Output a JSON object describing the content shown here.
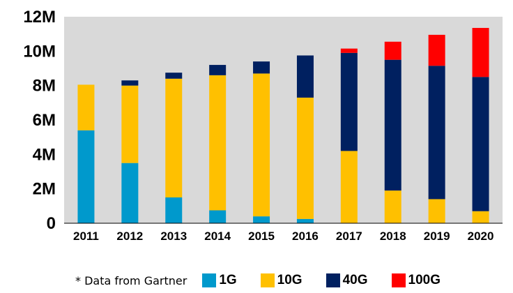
{
  "chart_data": {
    "type": "bar",
    "stacked": true,
    "categories": [
      "2011",
      "2012",
      "2013",
      "2014",
      "2015",
      "2016",
      "2017",
      "2018",
      "2019",
      "2020"
    ],
    "series": [
      {
        "name": "1G",
        "color": "#0099cc",
        "values": [
          5.4,
          3.5,
          1.5,
          0.75,
          0.4,
          0.25,
          0,
          0,
          0,
          0
        ]
      },
      {
        "name": "10G",
        "color": "#ffc000",
        "values": [
          2.65,
          4.5,
          6.9,
          7.85,
          8.3,
          7.05,
          4.2,
          1.9,
          1.4,
          0.7
        ]
      },
      {
        "name": "40G",
        "color": "#002060",
        "values": [
          0,
          0.3,
          0.35,
          0.6,
          0.7,
          2.45,
          5.7,
          7.6,
          7.75,
          7.8
        ]
      },
      {
        "name": "100G",
        "color": "#ff0000",
        "values": [
          0,
          0,
          0,
          0,
          0,
          0,
          0.25,
          1.05,
          1.8,
          2.85
        ]
      }
    ],
    "yticks": [
      "0",
      "2M",
      "4M",
      "6M",
      "8M",
      "10M",
      "12M"
    ],
    "ylim": [
      0,
      12
    ],
    "grid": false,
    "legend": "bottom",
    "note": "* Data from Gartner"
  }
}
